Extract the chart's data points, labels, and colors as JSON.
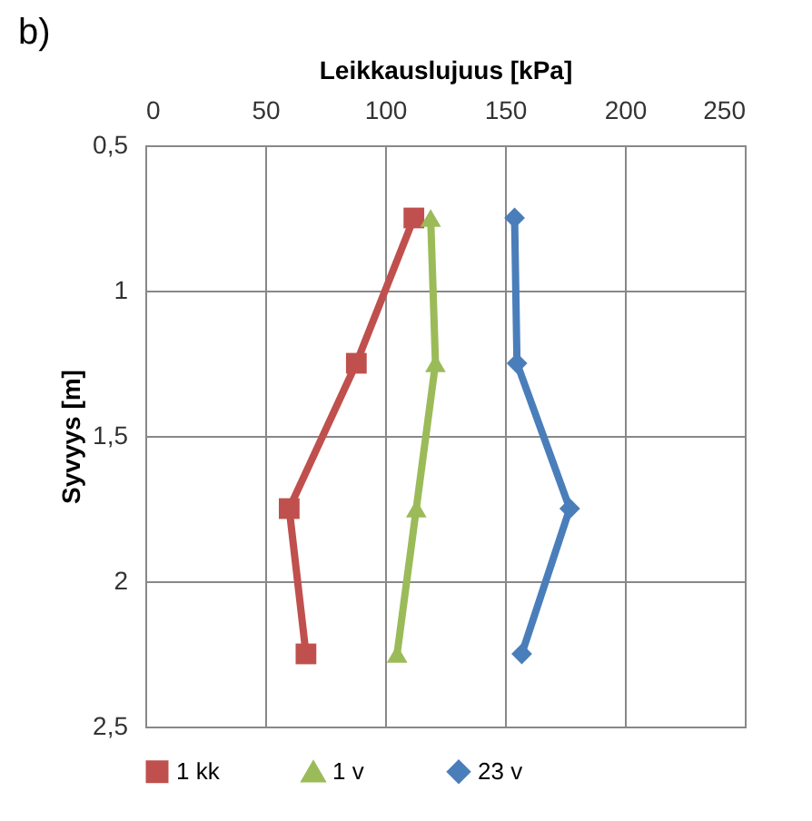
{
  "chart_data": {
    "type": "line",
    "title": "b)",
    "xlabel": "Leikkauslujuus [kPa]",
    "ylabel": "Syvyys [m]",
    "xlim": [
      0,
      250
    ],
    "xticks": [
      0,
      50,
      100,
      150,
      200,
      250
    ],
    "ylim": [
      2.5,
      0.5
    ],
    "yticks": [
      {
        "value": 0.5,
        "label": "0,5"
      },
      1,
      {
        "value": 1.5,
        "label": "1,5"
      },
      2,
      {
        "value": 2.5,
        "label": "2,5"
      }
    ],
    "grid": true,
    "legend": "bottom",
    "series": [
      {
        "name": "1 kk",
        "color": "#c0504d",
        "marker": "square",
        "x": [
          112,
          88,
          60,
          67
        ],
        "values": [
          0.75,
          1.25,
          1.75,
          2.25
        ]
      },
      {
        "name": "1 v",
        "color": "#9bbb59",
        "marker": "triangle",
        "x": [
          119,
          121,
          113,
          105
        ],
        "values": [
          0.75,
          1.25,
          1.75,
          2.25
        ]
      },
      {
        "name": "23 v",
        "color": "#4a7ebb",
        "marker": "diamond",
        "x": [
          154,
          155,
          177,
          157
        ],
        "values": [
          0.75,
          1.25,
          1.75,
          2.25
        ]
      }
    ]
  }
}
